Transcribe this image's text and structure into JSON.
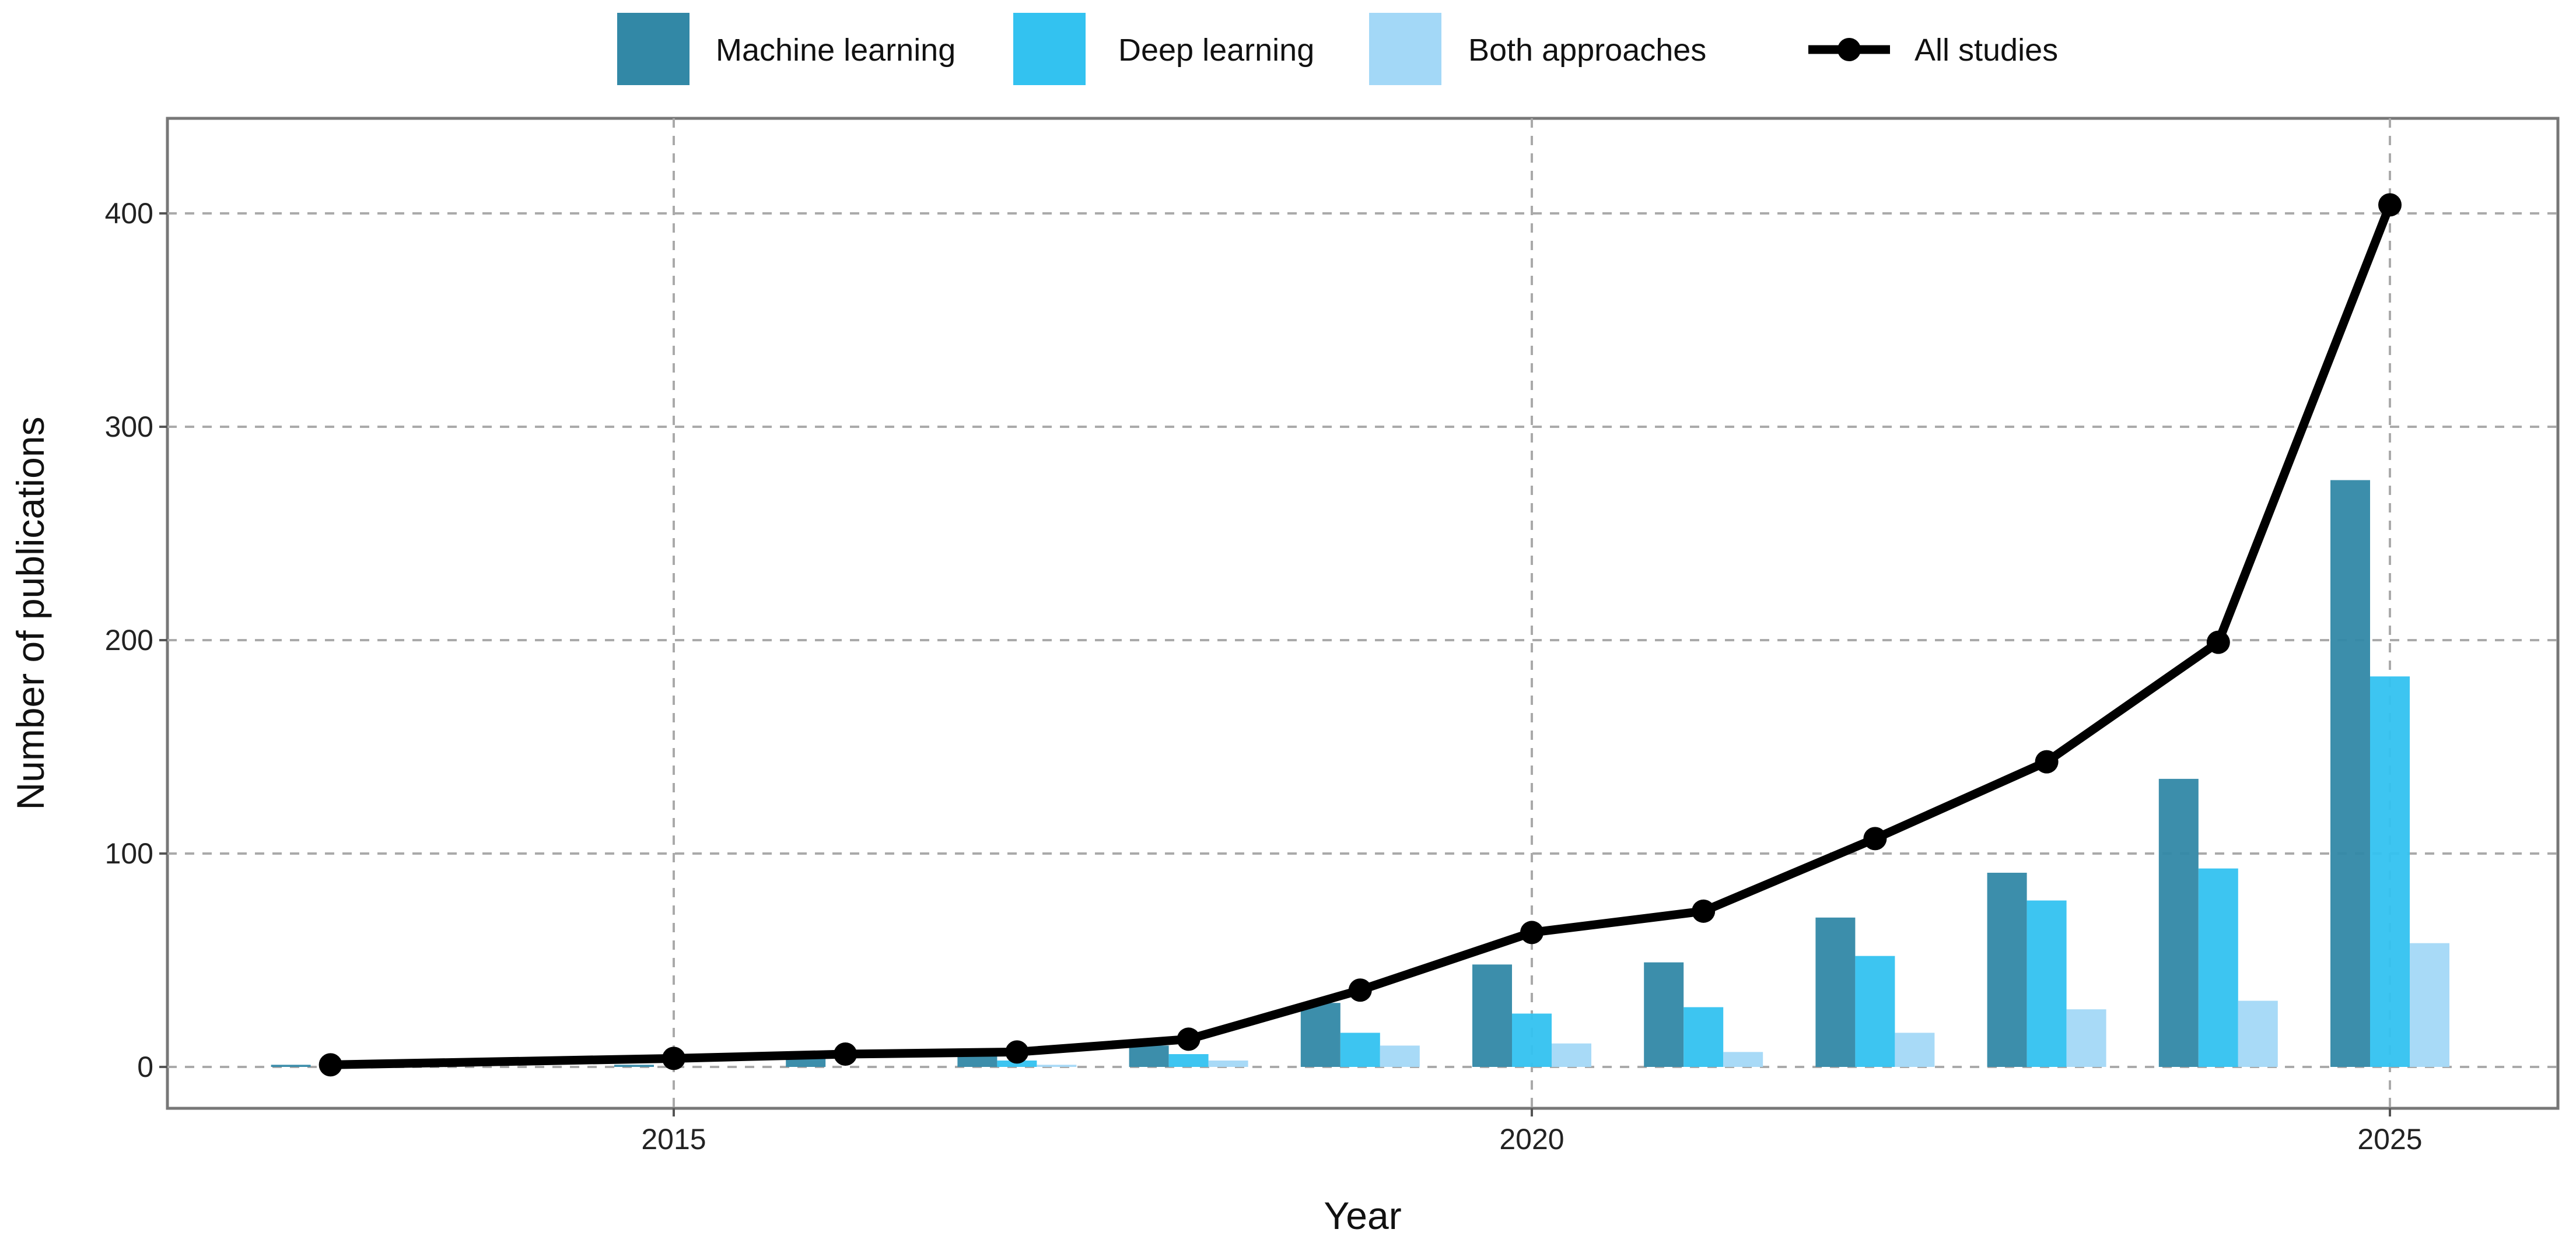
{
  "chart_data": {
    "type": "bar",
    "xlabel": "Year",
    "ylabel": "Number of publications",
    "xlim": [
      2012.3,
      2025.5
    ],
    "ylim": [
      -19,
      421
    ],
    "grid": true,
    "legend_position": "top",
    "x_ticks": [
      2015,
      2020,
      2025
    ],
    "y_ticks": [
      0,
      100,
      200,
      300,
      400
    ],
    "categories": [
      2013,
      2015,
      2016,
      2017,
      2018,
      2019,
      2020,
      2021,
      2022,
      2023,
      2024,
      2025
    ],
    "series": [
      {
        "name": "Machine learning",
        "kind": "bar",
        "color": "#3288a6",
        "values": [
          1,
          1,
          4,
          5,
          10,
          30,
          48,
          49,
          70,
          91,
          135,
          275
        ]
      },
      {
        "name": "Deep learning",
        "kind": "bar",
        "color": "#33c2f0",
        "values": [
          0,
          0,
          0,
          3,
          6,
          16,
          25,
          28,
          52,
          78,
          93,
          183
        ]
      },
      {
        "name": "Both approaches",
        "kind": "bar",
        "color": "#a3d8f7",
        "values": [
          0,
          0,
          0,
          1,
          3,
          10,
          11,
          7,
          16,
          27,
          31,
          58
        ]
      },
      {
        "name": "All studies",
        "kind": "line",
        "color": "#000000",
        "values": [
          1,
          4,
          6,
          7,
          13,
          36,
          63,
          73,
          107,
          143,
          199,
          404
        ]
      }
    ]
  }
}
